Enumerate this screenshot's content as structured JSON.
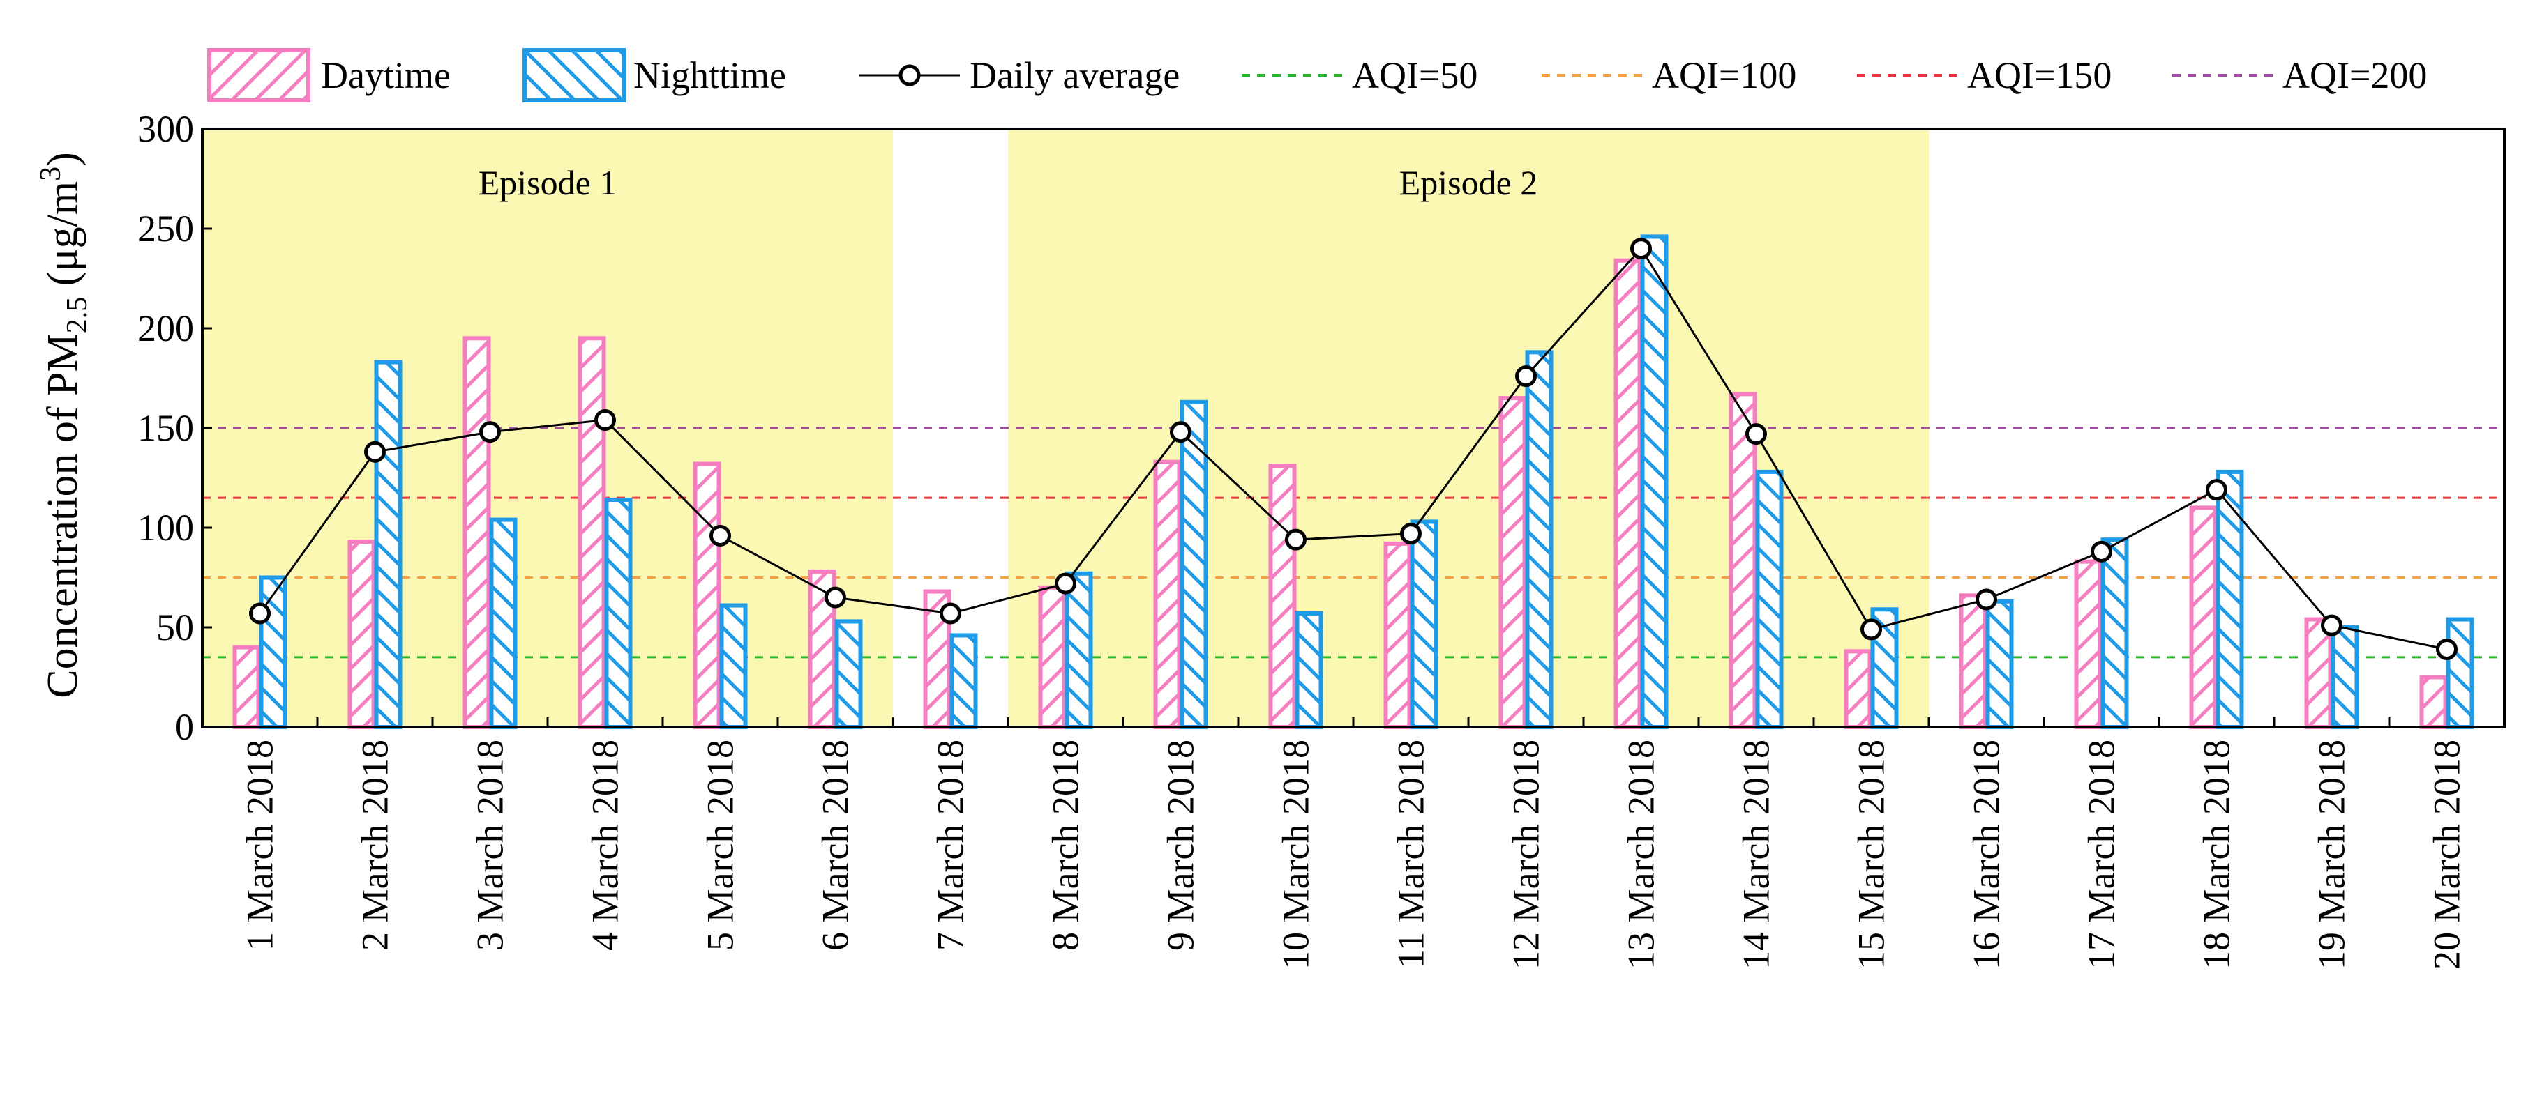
{
  "chart_data": {
    "type": "bar",
    "categories": [
      "1 March 2018",
      "2 March 2018",
      "3 March 2018",
      "4 March 2018",
      "5 March 2018",
      "6 March 2018",
      "7 March 2018",
      "8 March 2018",
      "9 March 2018",
      "10 March 2018",
      "11 March 2018",
      "12 March 2018",
      "13 March 2018",
      "14 March 2018",
      "15 March 2018",
      "16 March 2018",
      "17 March 2018",
      "18 March 2018",
      "19 March 2018",
      "20 March 2018"
    ],
    "series": [
      {
        "name": "Daytime",
        "kind": "bar",
        "color": "#f47ec0",
        "values": [
          40,
          93,
          195,
          195,
          132,
          78,
          68,
          70,
          133,
          131,
          92,
          165,
          234,
          167,
          38,
          66,
          83,
          110,
          54,
          25
        ]
      },
      {
        "name": "Nighttime",
        "kind": "bar",
        "color": "#1e9ae6",
        "values": [
          75,
          183,
          104,
          114,
          61,
          53,
          46,
          77,
          163,
          57,
          103,
          188,
          246,
          128,
          59,
          63,
          94,
          128,
          50,
          54
        ]
      },
      {
        "name": "Daily average",
        "kind": "line",
        "color": "#000000",
        "values": [
          57,
          138,
          148,
          154,
          96,
          65,
          57,
          72,
          148,
          94,
          97,
          176,
          240,
          147,
          49,
          64,
          88,
          119,
          51,
          39
        ]
      }
    ],
    "reference_lines": [
      {
        "label": "AQI=50",
        "value": 35,
        "color": "#2ab52a"
      },
      {
        "label": "AQI=100",
        "value": 75,
        "color": "#f5a043"
      },
      {
        "label": "AQI=150",
        "value": 115,
        "color": "#e8343c"
      },
      {
        "label": "AQI=200",
        "value": 150,
        "color": "#a44aa4"
      }
    ],
    "episodes": [
      {
        "label": "Episode 1",
        "start_index": 0,
        "end_index": 5,
        "color": "#fbf8b4"
      },
      {
        "label": "Episode 2",
        "start_index": 7,
        "end_index": 14,
        "color": "#fbf8b4"
      }
    ],
    "ylabel_main": "Concentration of PM",
    "ylabel_sub": "2.5",
    "ylabel_unit_open": " (μg/m",
    "ylabel_sup": "3",
    "ylabel_unit_close": ")",
    "ylim": [
      0,
      300
    ],
    "yticks": [
      0,
      50,
      100,
      150,
      200,
      250,
      300
    ],
    "legend_position": "top",
    "grid": false
  }
}
